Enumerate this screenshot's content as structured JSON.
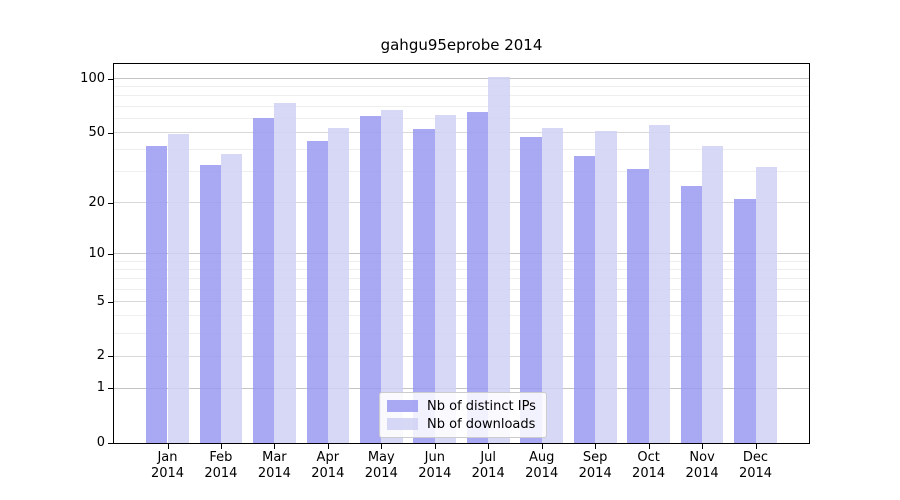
{
  "chart_data": {
    "type": "bar",
    "title": "gahgu95eprobe 2014",
    "categories": [
      "Jan",
      "Feb",
      "Mar",
      "Apr",
      "May",
      "Jun",
      "Jul",
      "Aug",
      "Sep",
      "Oct",
      "Nov",
      "Dec"
    ],
    "year_label": "2014",
    "series": [
      {
        "name": "Nb of distinct IPs",
        "color": "#9a9af1",
        "values": [
          42,
          33,
          60,
          45,
          62,
          52,
          65,
          47,
          37,
          31,
          25,
          21
        ]
      },
      {
        "name": "Nb of downloads",
        "color": "#d0d0f4",
        "values": [
          49,
          38,
          73,
          53,
          67,
          63,
          102,
          53,
          51,
          55,
          42,
          32
        ]
      }
    ],
    "yscale": "log1p",
    "ylim": [
      0,
      105
    ],
    "yticks": [
      0,
      1,
      2,
      5,
      10,
      20,
      50,
      100
    ],
    "minor_gridlines": [
      3,
      4,
      6,
      7,
      8,
      9,
      30,
      40,
      60,
      70,
      80,
      90
    ],
    "grid": true,
    "legend_position": "lower center",
    "bar_width_fraction": 0.4
  },
  "legend": {
    "items": [
      {
        "label": "Nb of distinct IPs"
      },
      {
        "label": "Nb of downloads"
      }
    ]
  },
  "colors": {
    "decade_grid": "#c4c4c4",
    "labeled_grid": "#d9d9d9",
    "minor_grid": "#eeeeee",
    "axis": "#000000"
  }
}
